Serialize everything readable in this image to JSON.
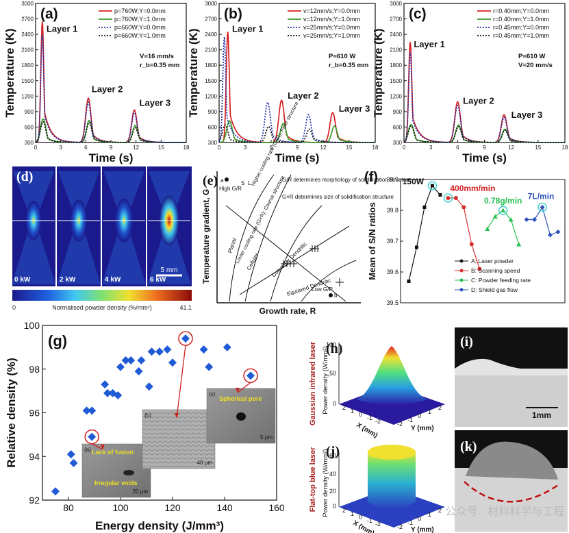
{
  "figure_title": "Composite figure: thermal histories, powder density, solidification map, S/N ratios, relative density, laser profiles",
  "watermark": "公众号 · 材料科学与工程",
  "chart_data": [
    {
      "id": "a",
      "panel_label": "(a)",
      "type": "line",
      "xlabel": "Time (s)",
      "ylabel": "Temperature (K)",
      "xlim": [
        0,
        18
      ],
      "ylim": [
        300,
        3000
      ],
      "xticks": [
        0,
        3,
        6,
        9,
        12,
        15,
        18
      ],
      "yticks": [
        300,
        600,
        900,
        1200,
        1500,
        1800,
        2100,
        2400,
        2700,
        3000
      ],
      "annotations": [
        "V=16 mm/s",
        "r_b=0.35 mm"
      ],
      "layer_labels": [
        {
          "text": "Layer 1",
          "x": 1.3,
          "y": 2450
        },
        {
          "text": "Layer 2",
          "x": 6.7,
          "y": 1280
        },
        {
          "text": "Layer 3",
          "x": 12.4,
          "y": 1010
        }
      ],
      "series": [
        {
          "name": "p=760W;Y=0.0mm",
          "color": "#d62020",
          "dash": "solid",
          "peaks": [
            {
              "t": 0.8,
              "T": 2650
            },
            {
              "t": 6.3,
              "T": 1160
            },
            {
              "t": 11.8,
              "T": 930
            }
          ]
        },
        {
          "name": "p=760W;Y=1.0mm",
          "color": "#3a9e2a",
          "dash": "solid",
          "peaks": [
            {
              "t": 0.9,
              "T": 760
            },
            {
              "t": 6.4,
              "T": 730
            },
            {
              "t": 11.9,
              "T": 630
            }
          ]
        },
        {
          "name": "p=660W;Y=0.0mm",
          "color": "#2233aa",
          "dash": "dot",
          "peaks": [
            {
              "t": 0.8,
              "T": 2400
            },
            {
              "t": 6.3,
              "T": 1080
            },
            {
              "t": 11.8,
              "T": 880
            }
          ]
        },
        {
          "name": "p=660W;Y=1.0mm",
          "color": "#111111",
          "dash": "dot",
          "peaks": [
            {
              "t": 0.9,
              "T": 700
            },
            {
              "t": 6.4,
              "T": 690
            },
            {
              "t": 11.9,
              "T": 590
            }
          ]
        }
      ]
    },
    {
      "id": "b",
      "panel_label": "(b)",
      "type": "line",
      "xlabel": "Time (s)",
      "ylabel": "Temperature (K)",
      "xlim": [
        0,
        18
      ],
      "ylim": [
        300,
        3000
      ],
      "xticks": [
        0,
        3,
        6,
        9,
        12,
        15,
        18
      ],
      "yticks": [
        300,
        600,
        900,
        1200,
        1500,
        1800,
        2100,
        2400,
        2700,
        3000
      ],
      "annotations": [
        "P=610 W",
        "r_b=0.35 mm"
      ],
      "layer_labels": [
        {
          "text": "Layer 1",
          "x": 1.5,
          "y": 2450
        },
        {
          "text": "Layer 2",
          "x": 7.9,
          "y": 1150
        },
        {
          "text": "Layer 3",
          "x": 13.8,
          "y": 900
        }
      ],
      "series": [
        {
          "name": "v=12mm/s;Y=0.0mm",
          "color": "#d62020",
          "dash": "solid",
          "peaks": [
            {
              "t": 1.0,
              "T": 2450
            },
            {
              "t": 7.2,
              "T": 1120
            },
            {
              "t": 13.1,
              "T": 880
            }
          ]
        },
        {
          "name": "v=12mm/s;Y=1.0mm",
          "color": "#3a9e2a",
          "dash": "solid",
          "peaks": [
            {
              "t": 1.2,
              "T": 720
            },
            {
              "t": 7.4,
              "T": 670
            },
            {
              "t": 13.3,
              "T": 620
            }
          ]
        },
        {
          "name": "v=25mm/s;Y=0.0mm",
          "color": "#2233aa",
          "dash": "dot",
          "peaks": [
            {
              "t": 0.6,
              "T": 2350
            },
            {
              "t": 5.6,
              "T": 1080
            },
            {
              "t": 10.3,
              "T": 840
            }
          ]
        },
        {
          "name": "v=25mm/s;Y=1.0mm",
          "color": "#111111",
          "dash": "dot",
          "peaks": [
            {
              "t": 0.7,
              "T": 640
            },
            {
              "t": 5.7,
              "T": 610
            },
            {
              "t": 10.4,
              "T": 560
            }
          ]
        }
      ]
    },
    {
      "id": "c",
      "panel_label": "(c)",
      "type": "line",
      "xlabel": "Time (s)",
      "ylabel": "Temperature (K)",
      "xlim": [
        0,
        18
      ],
      "ylim": [
        300,
        3000
      ],
      "xticks": [
        0,
        3,
        6,
        9,
        12,
        15,
        18
      ],
      "yticks": [
        300,
        600,
        900,
        1200,
        1500,
        1800,
        2100,
        2400,
        2700,
        3000
      ],
      "annotations": [
        "P=610 W",
        "V=20 mm/s"
      ],
      "layer_labels": [
        {
          "text": "Layer 1",
          "x": 1.1,
          "y": 2150
        },
        {
          "text": "Layer 2",
          "x": 6.6,
          "y": 1050
        },
        {
          "text": "Layer 3",
          "x": 12.0,
          "y": 780
        }
      ],
      "series": [
        {
          "name": "r=0.40mm;Y=0.0mm",
          "color": "#d62020",
          "dash": "solid",
          "peaks": [
            {
              "t": 0.7,
              "T": 2250
            },
            {
              "t": 6.0,
              "T": 1090
            },
            {
              "t": 11.2,
              "T": 840
            }
          ]
        },
        {
          "name": "r=0.40mm;Y=1.0mm",
          "color": "#3a9e2a",
          "dash": "solid",
          "peaks": [
            {
              "t": 0.8,
              "T": 650
            },
            {
              "t": 6.1,
              "T": 640
            },
            {
              "t": 11.3,
              "T": 560
            }
          ]
        },
        {
          "name": "r=0.45mm;Y=0.0mm",
          "color": "#2233aa",
          "dash": "dot",
          "peaks": [
            {
              "t": 0.7,
              "T": 2050
            },
            {
              "t": 6.0,
              "T": 1020
            },
            {
              "t": 11.2,
              "T": 790
            }
          ]
        },
        {
          "name": "r=0.45mm;Y=1.0mm",
          "color": "#111111",
          "dash": "dot",
          "peaks": [
            {
              "t": 0.8,
              "T": 620
            },
            {
              "t": 6.1,
              "T": 610
            },
            {
              "t": 11.3,
              "T": 540
            }
          ]
        }
      ]
    },
    {
      "id": "d",
      "panel_label": "(d)",
      "type": "heatmap",
      "frames": [
        "0 kW",
        "2 kW",
        "4 kW",
        "6 kW"
      ],
      "intensity": [
        0.55,
        0.65,
        0.75,
        1.0
      ],
      "scale_bar": "5 mm",
      "colorbar_label": "Normalised powder density (%/mm²)",
      "colorbar_min": "0",
      "colorbar_max": "41.1"
    },
    {
      "id": "e",
      "panel_label": "(e)",
      "type": "diagram",
      "xlabel": "Growth rate, R",
      "ylabel": "Temperature gradient, G",
      "regions": [
        "Planar",
        "Cellular",
        "Columnar Dendritic",
        "Equiaxed Dendritic"
      ],
      "notes": [
        "High G/R",
        "Low G/R",
        "Higher cooling rate (G×R); Finer structure",
        "Lower cooling rate (G×R); Coarse structure",
        "G/R determines morphology of solidification structure",
        "G×R determines size of solidification structure"
      ],
      "point_labels": [
        "a",
        "b"
      ],
      "interface_labels": [
        "S",
        "L"
      ]
    },
    {
      "id": "f",
      "panel_label": "(f)",
      "type": "line",
      "ylabel": "Mean of S/N ratios",
      "ylim": [
        39.5,
        39.9
      ],
      "yticks": [
        39.5,
        39.6,
        39.7,
        39.8,
        39.9
      ],
      "series": [
        {
          "name": "A: Laser powder",
          "color": "#111111",
          "marker": "square",
          "values": [
            39.57,
            39.68,
            39.81,
            39.88,
            39.85
          ],
          "x": [
            0,
            1,
            2,
            3,
            4
          ],
          "callout": "150W",
          "callout_index": 3
        },
        {
          "name": "B: Scanning speed",
          "color": "#d63030",
          "marker": "circle",
          "values": [
            39.84,
            39.84,
            39.81,
            39.69,
            39.61
          ],
          "x": [
            5,
            6,
            7,
            8,
            9
          ],
          "callout": "400mm/min",
          "callout_index": 0
        },
        {
          "name": "C: Powder feeding rate",
          "color": "#27c050",
          "marker": "triangle",
          "values": [
            39.74,
            39.78,
            39.8,
            39.77,
            39.69
          ],
          "x": [
            10,
            11,
            12,
            13,
            14
          ],
          "callout": "0.78g/min",
          "callout_index": 2
        },
        {
          "name": "D: Shield gas flow",
          "color": "#2a52b8",
          "marker": "diamond",
          "values": [
            39.77,
            39.77,
            39.81,
            39.72,
            39.73
          ],
          "x": [
            15,
            16,
            17,
            18,
            19
          ],
          "callout": "7L/min",
          "callout_index": 2
        }
      ]
    },
    {
      "id": "g",
      "panel_label": "(g)",
      "type": "scatter",
      "xlabel": "Energy density (J/mm³)",
      "ylabel": "Relative density (%)",
      "xlim": [
        70,
        160
      ],
      "ylim": [
        92,
        100
      ],
      "xticks": [
        80,
        100,
        120,
        140,
        160
      ],
      "yticks": [
        92,
        94,
        96,
        98,
        100
      ],
      "points": [
        [
          75,
          92.4
        ],
        [
          81,
          94.1
        ],
        [
          82,
          93.7
        ],
        [
          87,
          96.1
        ],
        [
          89,
          96.1
        ],
        [
          89,
          94.9
        ],
        [
          94,
          97.3
        ],
        [
          95,
          96.9
        ],
        [
          97,
          96.9
        ],
        [
          99,
          96.8
        ],
        [
          100,
          98.1
        ],
        [
          102,
          98.4
        ],
        [
          104,
          98.4
        ],
        [
          107,
          97.9
        ],
        [
          108,
          98.4
        ],
        [
          111,
          97.2
        ],
        [
          112,
          98.8
        ],
        [
          115,
          98.8
        ],
        [
          118,
          98.9
        ],
        [
          120,
          98.3
        ],
        [
          125,
          99.4
        ],
        [
          132,
          98.9
        ],
        [
          134,
          98.1
        ],
        [
          141,
          99.0
        ],
        [
          150,
          97.7
        ]
      ],
      "highlighted": [
        [
          89,
          94.9
        ],
        [
          125,
          99.4
        ],
        [
          150,
          97.7
        ]
      ],
      "insets": [
        {
          "label": "(a)",
          "notes": [
            "Lack of fusion",
            "Irregular voids"
          ],
          "scale": "20 μm"
        },
        {
          "label": "(b)",
          "notes": [],
          "scale": "40 μm"
        },
        {
          "label": "(c)",
          "notes": [
            "Spherical pore"
          ],
          "scale": "5 μm"
        }
      ]
    },
    {
      "id": "h",
      "panel_label": "(h)",
      "type": "surface",
      "title": "Gaussian infrared laser",
      "zlabel": "Power density (W/mm²)",
      "zticks": [
        0,
        50,
        100
      ],
      "xlabel": "X (mm)",
      "ylabel": "Y (mm)",
      "xticks": [
        2,
        1,
        0,
        -1,
        -2
      ],
      "yticks": [
        -2,
        -1,
        0,
        1,
        2
      ]
    },
    {
      "id": "j",
      "panel_label": "(j)",
      "type": "surface",
      "title": "Flat-top blue laser",
      "zlabel": "Power density (W/mm²)",
      "zticks": [
        0,
        20,
        40,
        60
      ],
      "xlabel": "X (mm)",
      "ylabel": "Y (mm)",
      "xticks": [
        2,
        1,
        0,
        -1,
        -2
      ],
      "yticks": [
        -2,
        -1,
        0,
        1,
        2
      ]
    },
    {
      "id": "i",
      "panel_label": "(i)",
      "type": "image",
      "scale_bar": "1mm"
    },
    {
      "id": "k",
      "panel_label": "(k)",
      "type": "image"
    }
  ]
}
